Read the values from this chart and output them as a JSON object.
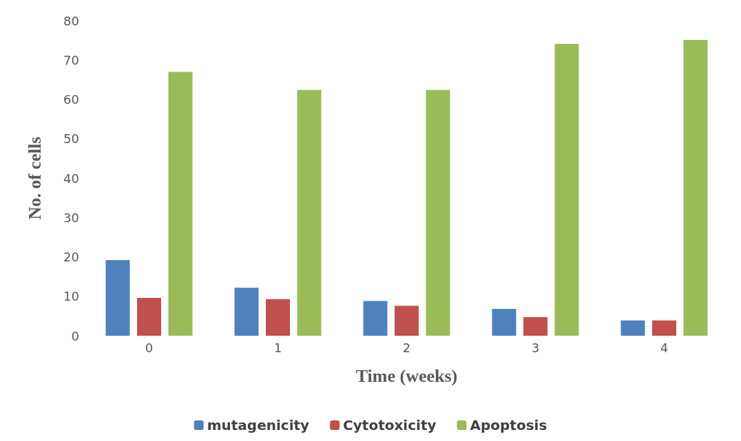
{
  "chart_data": {
    "type": "bar",
    "xlabel": "Time (weeks)",
    "ylabel": "No. of cells",
    "categories": [
      "0",
      "1",
      "2",
      "3",
      "4"
    ],
    "series": [
      {
        "name": "mutagenicity",
        "color": "#4f81bd",
        "values": [
          19.2,
          12.2,
          8.8,
          6.8,
          3.9
        ]
      },
      {
        "name": "Cytotoxicity",
        "color": "#c0504d",
        "values": [
          9.6,
          9.3,
          7.6,
          4.7,
          3.9
        ]
      },
      {
        "name": "Apoptosis",
        "color": "#9bbb59",
        "values": [
          67,
          62.4,
          62.4,
          74.1,
          75.1
        ]
      }
    ],
    "ylim": [
      0,
      80
    ],
    "yticks": [
      0,
      10,
      20,
      30,
      40,
      50,
      60,
      70,
      80
    ],
    "grid": false,
    "legend": "bottom"
  }
}
